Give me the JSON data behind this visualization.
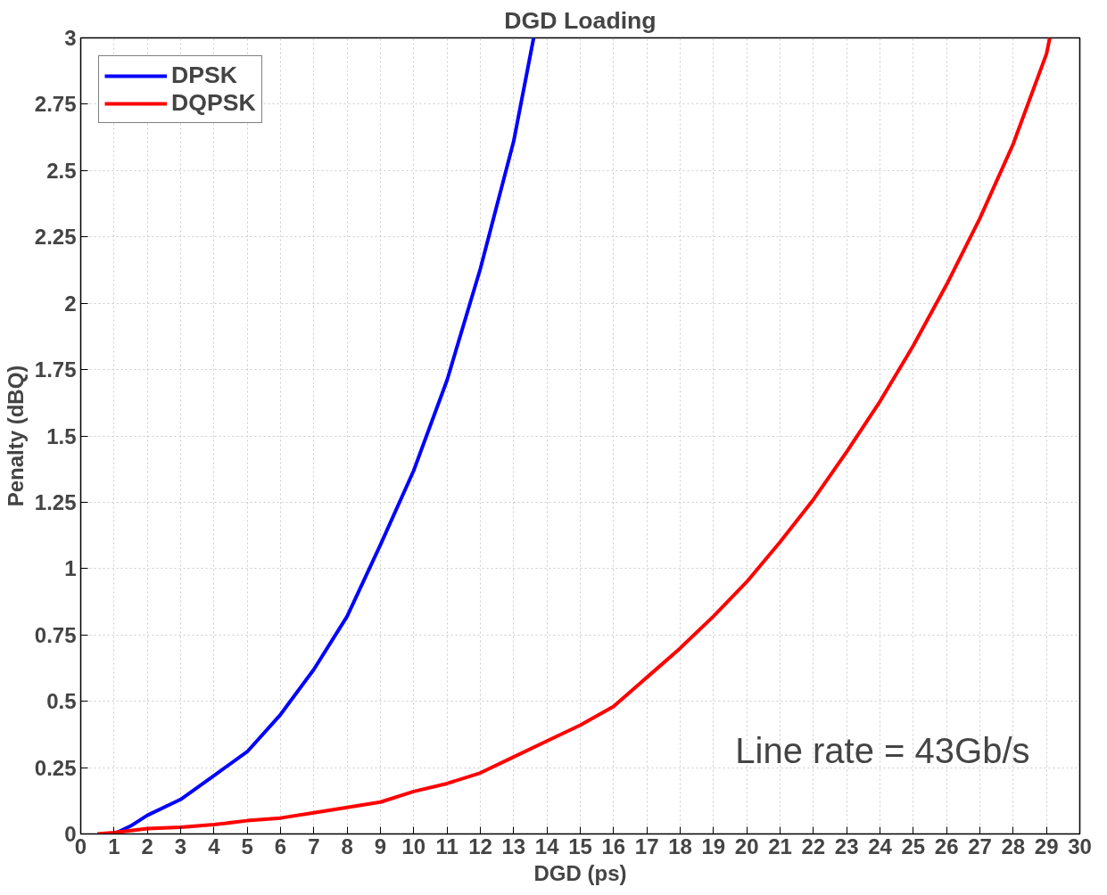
{
  "chart_data": {
    "type": "line",
    "title": "DGD Loading",
    "xlabel": "DGD (ps)",
    "ylabel": "Penalty (dBQ)",
    "annotations": [
      "Line rate = 43Gb/s"
    ],
    "series": [
      {
        "name": "DPSK",
        "color": "#0000ff",
        "x": [
          1,
          1.5,
          2,
          3,
          4,
          5,
          6,
          7,
          8,
          9,
          10,
          11,
          12,
          13,
          13.6
        ],
        "values": [
          0,
          0.03,
          0.07,
          0.13,
          0.22,
          0.31,
          0.45,
          0.62,
          0.82,
          1.09,
          1.37,
          1.71,
          2.13,
          2.61,
          3
        ]
      },
      {
        "name": "DQPSK",
        "color": "#ff0000",
        "x": [
          0.5,
          1,
          2,
          3,
          4,
          5,
          6,
          7,
          8,
          9,
          10,
          11,
          12,
          13,
          14,
          15,
          16,
          17,
          18,
          19,
          20,
          21,
          22,
          23,
          24,
          25,
          26,
          27,
          28,
          29,
          29.1
        ],
        "values": [
          0,
          0.005,
          0.02,
          0.025,
          0.035,
          0.05,
          0.06,
          0.08,
          0.1,
          0.12,
          0.16,
          0.19,
          0.23,
          0.29,
          0.35,
          0.41,
          0.48,
          0.59,
          0.7,
          0.82,
          0.95,
          1.1,
          1.26,
          1.44,
          1.63,
          1.84,
          2.07,
          2.32,
          2.6,
          2.94,
          3
        ]
      }
    ],
    "xlim": [
      0,
      30
    ],
    "xticks": [
      0,
      1,
      2,
      3,
      4,
      5,
      6,
      7,
      8,
      9,
      10,
      11,
      12,
      13,
      14,
      15,
      16,
      17,
      18,
      19,
      20,
      21,
      22,
      23,
      24,
      25,
      26,
      27,
      28,
      29,
      30
    ],
    "ylim": [
      0,
      3
    ],
    "yticks": [
      0,
      0.25,
      0.5,
      0.75,
      1,
      1.25,
      1.5,
      1.75,
      2,
      2.25,
      2.5,
      2.75,
      3
    ],
    "grid": true,
    "legend": "top left",
    "line_style": "solid",
    "marker": "none"
  }
}
